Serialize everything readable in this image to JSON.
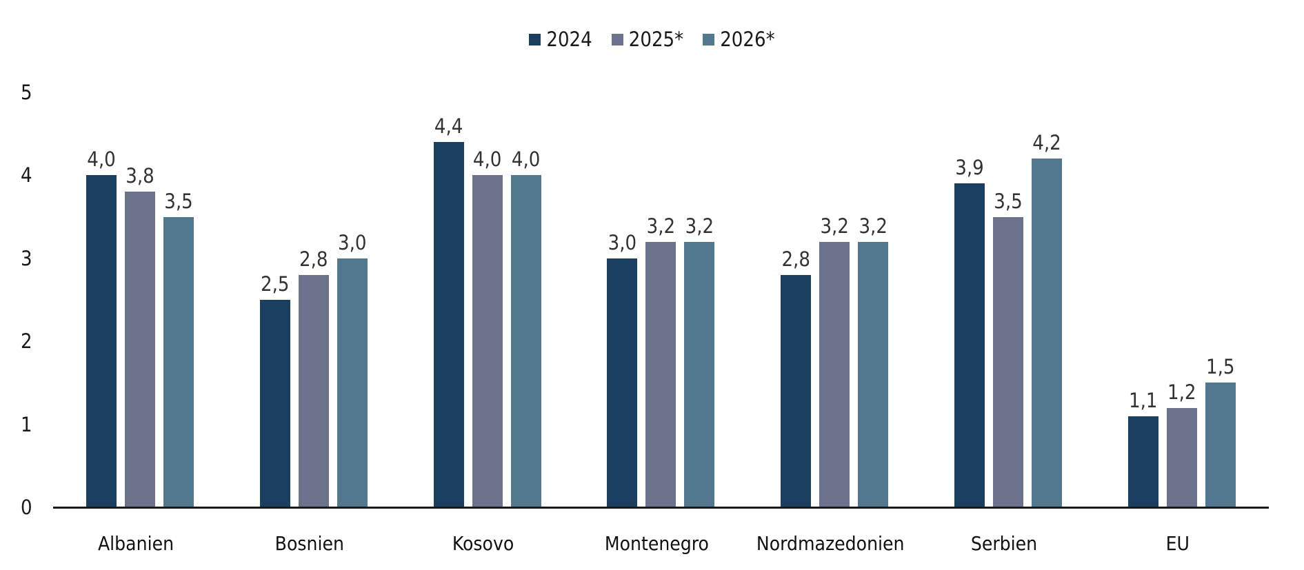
{
  "legend": [
    {
      "label": "2024",
      "color": "#1a3f60"
    },
    {
      "label": "2025*",
      "color": "#6c728c"
    },
    {
      "label": "2026*",
      "color": "#52788f"
    }
  ],
  "chart_data": {
    "type": "bar",
    "title": "",
    "xlabel": "",
    "ylabel": "",
    "ylim": [
      0,
      5
    ],
    "yticks": [
      "0",
      "1",
      "2",
      "3",
      "4",
      "5"
    ],
    "grid": false,
    "legend_position": "top",
    "categories": [
      "Albanien",
      "Bosnien",
      "Kosovo",
      "Montenegro",
      "Nordmazedonien",
      "Serbien",
      "EU"
    ],
    "series": [
      {
        "name": "2024",
        "color": "#1a3f60",
        "values": [
          4.0,
          2.5,
          4.4,
          3.0,
          2.8,
          3.9,
          1.1
        ],
        "labels": [
          "4,0",
          "2,5",
          "4,4",
          "3,0",
          "2,8",
          "3,9",
          "1,1"
        ]
      },
      {
        "name": "2025*",
        "color": "#6c728c",
        "values": [
          3.8,
          2.8,
          4.0,
          3.2,
          3.2,
          3.5,
          1.2
        ],
        "labels": [
          "3,8",
          "2,8",
          "4,0",
          "3,2",
          "3,2",
          "3,5",
          "1,2"
        ]
      },
      {
        "name": "2026*",
        "color": "#52788f",
        "values": [
          3.5,
          3.0,
          4.0,
          3.2,
          3.2,
          4.2,
          1.5
        ],
        "labels": [
          "3,5",
          "3,0",
          "4,0",
          "3,2",
          "3,2",
          "4,2",
          "1,5"
        ]
      }
    ]
  }
}
